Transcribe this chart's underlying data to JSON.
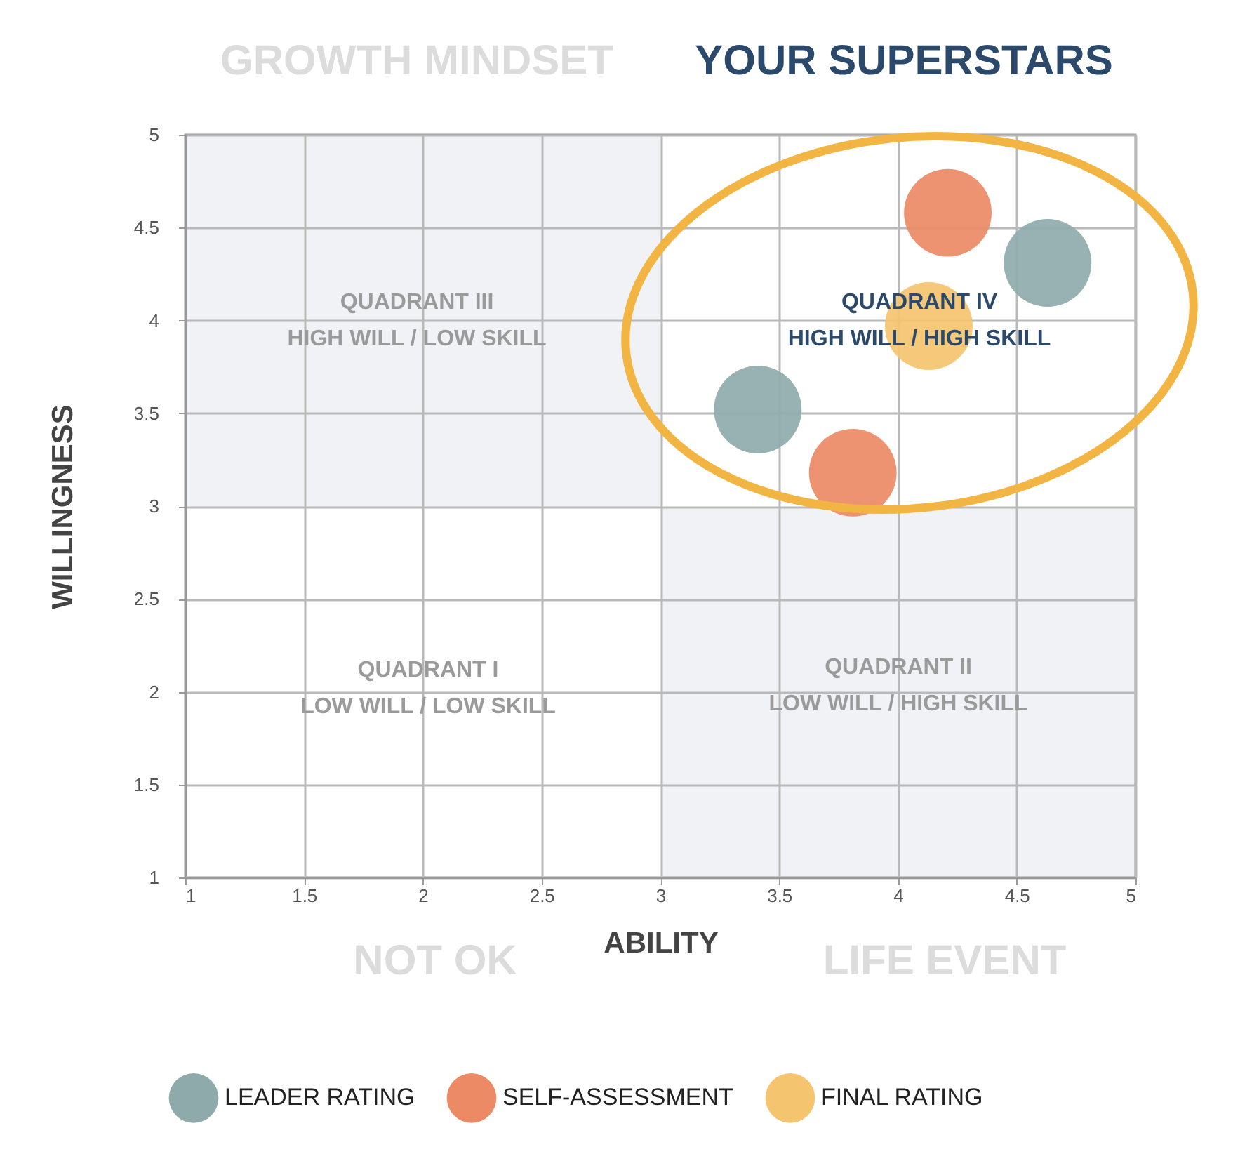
{
  "chart_data": {
    "type": "scatter",
    "xlabel": "ABILITY",
    "ylabel": "WILLINGNESS",
    "xlim": [
      1,
      5
    ],
    "ylim": [
      1,
      5
    ],
    "xticks": [
      1,
      1.5,
      2,
      2.5,
      3,
      3.5,
      4,
      4.5,
      5
    ],
    "yticks": [
      1,
      1.5,
      2,
      2.5,
      3,
      3.5,
      4,
      4.5,
      5
    ],
    "grid": true,
    "legend": "bottom",
    "marker": "circle",
    "annotations": [
      "GROWTH MINDSET",
      "YOUR SUPERSTARS",
      "NOT OK",
      "LIFE EVENT",
      "QUADRANT III\nHIGH WILL / LOW SKILL",
      "QUADRANT IV\nHIGH WILL / HIGH SKILL",
      "QUADRANT I\nLOW WILL / LOW SKILL",
      "QUADRANT II\nLOW WILL / HIGH SKILL"
    ],
    "series": [
      {
        "name": "LEADER RATING",
        "color": "#8faaab",
        "x": [
          3.41,
          4.63
        ],
        "values": [
          3.52,
          4.31
        ]
      },
      {
        "name": "SELF-ASSESSMENT",
        "color": "#ec8a66",
        "x": [
          4.21,
          3.81
        ],
        "values": [
          4.58,
          3.18
        ]
      },
      {
        "name": "FINAL RATING",
        "color": "#f4c46e",
        "x": [
          4.13
        ],
        "values": [
          3.97
        ]
      }
    ]
  }
}
